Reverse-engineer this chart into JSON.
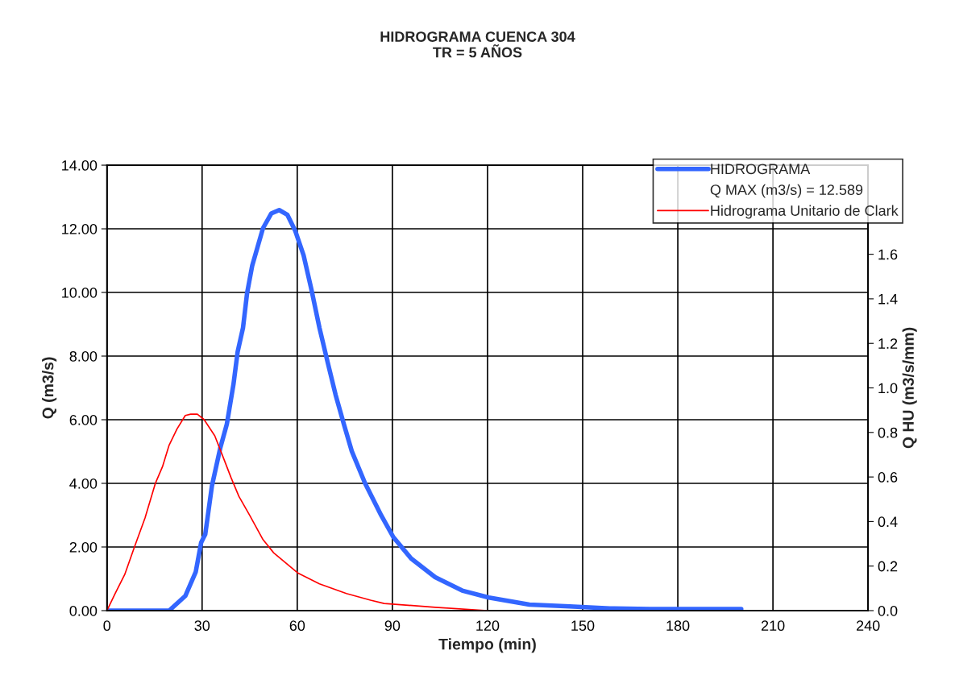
{
  "chart_data": {
    "type": "line",
    "title": "HIDROGRAMA CUENCA 304\nTR = 5 AÑOS",
    "xlabel": "Tiempo (min)",
    "ylabel": "Q (m3/s)",
    "y2label": "Q HU (m3/s/mm)",
    "annotations": [
      "Q MAX (m3/s) = 12.589"
    ],
    "xlim": [
      0,
      240
    ],
    "xticks": [
      0,
      30,
      60,
      90,
      120,
      150,
      180,
      210,
      240
    ],
    "ylim": [
      0,
      14
    ],
    "yticks": [
      {
        "value": 0,
        "label": "0.00"
      },
      {
        "value": 2,
        "label": "2.00"
      },
      {
        "value": 4,
        "label": "4.00"
      },
      {
        "value": 6,
        "label": "6.00"
      },
      {
        "value": 8,
        "label": "8.00"
      },
      {
        "value": 10,
        "label": "10.00"
      },
      {
        "value": 12,
        "label": "12.00"
      },
      {
        "value": 14,
        "label": "14.00"
      }
    ],
    "y2lim": [
      0,
      2.0
    ],
    "y2ticks": [
      {
        "value": 0,
        "label": "0.0"
      },
      {
        "value": 0.2,
        "label": "0.2"
      },
      {
        "value": 0.4,
        "label": "0.4"
      },
      {
        "value": 0.6,
        "label": "0.6"
      },
      {
        "value": 0.8,
        "label": "0.8"
      },
      {
        "value": 1.0,
        "label": "1.0"
      },
      {
        "value": 1.2,
        "label": "1.2"
      },
      {
        "value": 1.4,
        "label": "1.4"
      },
      {
        "value": 1.6,
        "label": "1.6"
      }
    ],
    "grid": true,
    "legend": "top right",
    "marker": "none",
    "line_style": "solid",
    "series": [
      {
        "name": "HIDROGRAMA",
        "color": "#3366ff",
        "x": [
          0,
          19.6,
          24.7,
          28.0,
          29.7,
          31.0,
          33.1,
          35.7,
          37.8,
          39.9,
          41.2,
          42.9,
          44.2,
          45.8,
          47.5,
          49.2,
          51.8,
          54.3,
          56.9,
          59.4,
          62.0,
          64.5,
          67.0,
          69.6,
          72.1,
          74.7,
          77.2,
          81.4,
          86.5,
          90.3,
          95.9,
          103.5,
          112.0,
          120.4,
          133.2,
          145.9,
          158.6,
          171.3,
          200
        ],
        "values": [
          0,
          0,
          0.46,
          1.22,
          2.14,
          2.4,
          3.92,
          5.1,
          5.86,
          7.12,
          8.13,
          8.89,
          9.99,
          10.84,
          11.43,
          12.02,
          12.48,
          12.589,
          12.44,
          11.93,
          11.17,
          10.08,
          8.89,
          7.8,
          6.78,
          5.86,
          5.01,
          4.0,
          2.99,
          2.31,
          1.64,
          1.05,
          0.63,
          0.41,
          0.19,
          0.13,
          0.07,
          0.05,
          0.05
        ]
      },
      {
        "name": "Hidrograma Unitario de Clark",
        "color": "#ff0000",
        "axis": "y2",
        "x": [
          0,
          2.6,
          5.6,
          8.6,
          12.0,
          15.3,
          17.5,
          19.6,
          22.1,
          24.7,
          26.4,
          28.5,
          30.6,
          34.0,
          36.5,
          39.1,
          41.6,
          45.0,
          49.2,
          52.6,
          60.3,
          67.0,
          75.5,
          83.1,
          87.4,
          103.5,
          120.0
        ],
        "values": [
          0,
          0.077,
          0.162,
          0.283,
          0.416,
          0.573,
          0.646,
          0.743,
          0.816,
          0.876,
          0.882,
          0.882,
          0.858,
          0.785,
          0.694,
          0.598,
          0.513,
          0.428,
          0.319,
          0.259,
          0.168,
          0.12,
          0.077,
          0.047,
          0.032,
          0.015,
          0.0
        ]
      }
    ]
  }
}
